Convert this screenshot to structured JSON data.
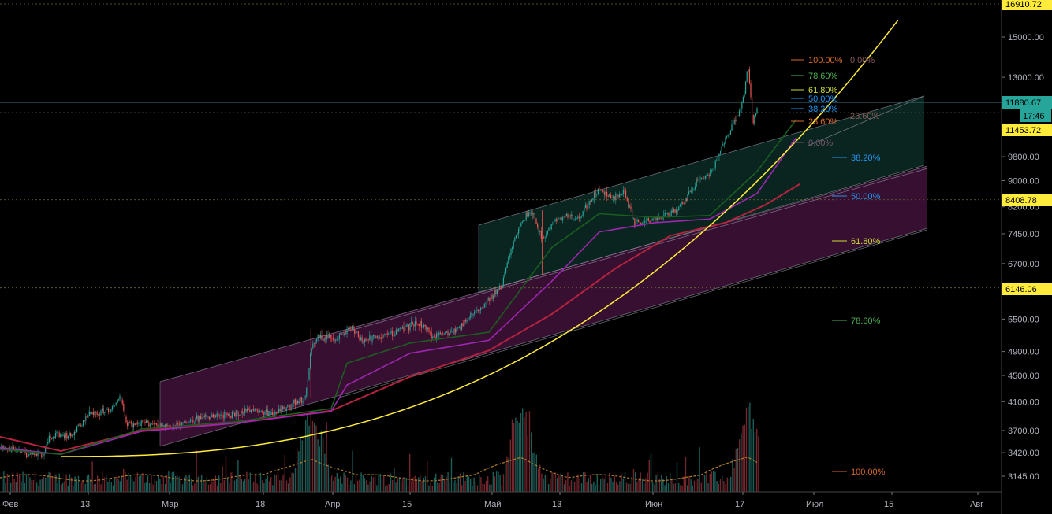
{
  "chart_data": {
    "type": "candlestick",
    "y_scale": "log",
    "ylim": [
      3000,
      17500
    ],
    "x_labels": [
      "Фев",
      "13",
      "Мар",
      "18",
      "Апр",
      "15",
      "Май",
      "13",
      "Июн",
      "17",
      "Июл",
      "15",
      "Авг"
    ],
    "y_ticks": [
      15000.0,
      13000.0,
      9800.0,
      9000.0,
      8200.0,
      7450.0,
      6700.0,
      5500.0,
      4900.0,
      4500.0,
      4100.0,
      3700.0,
      3420.0,
      3145.0
    ],
    "price_labels": [
      {
        "text": "16910.72",
        "value": 16910.72,
        "style": "yellow"
      },
      {
        "text": "11880.67",
        "value": 11880.67,
        "style": "teal"
      },
      {
        "text": "17:46",
        "value": 11300,
        "style": "teal-sub"
      },
      {
        "text": "11453.72",
        "value": 11453.72,
        "style": "yellow"
      },
      {
        "text": "8408.78",
        "value": 8408.78,
        "style": "yellow"
      },
      {
        "text": "6146.06",
        "value": 6146.06,
        "style": "yellow"
      }
    ],
    "horizontal_levels": [
      16910.72,
      11880.67,
      11453.72,
      8408.78,
      6146.06
    ],
    "price_series": [
      {
        "date": "Feb-01",
        "value": 3470
      },
      {
        "date": "Feb-06",
        "value": 3420
      },
      {
        "date": "Feb-09",
        "value": 3390
      },
      {
        "date": "Feb-10",
        "value": 3640
      },
      {
        "date": "Feb-14",
        "value": 3620
      },
      {
        "date": "Feb-18",
        "value": 3920
      },
      {
        "date": "Feb-22",
        "value": 3990
      },
      {
        "date": "Feb-24",
        "value": 4180
      },
      {
        "date": "Feb-25",
        "value": 3780
      },
      {
        "date": "Mar-02",
        "value": 3800
      },
      {
        "date": "Mar-06",
        "value": 3740
      },
      {
        "date": "Mar-10",
        "value": 3860
      },
      {
        "date": "Mar-14",
        "value": 3880
      },
      {
        "date": "Mar-18",
        "value": 3920
      },
      {
        "date": "Mar-22",
        "value": 3980
      },
      {
        "date": "Mar-26",
        "value": 3940
      },
      {
        "date": "Mar-30",
        "value": 4080
      },
      {
        "date": "Apr-01",
        "value": 4150
      },
      {
        "date": "Apr-02",
        "value": 4900
      },
      {
        "date": "Apr-03",
        "value": 5150
      },
      {
        "date": "Apr-07",
        "value": 5150
      },
      {
        "date": "Apr-10",
        "value": 5350
      },
      {
        "date": "Apr-12",
        "value": 5070
      },
      {
        "date": "Apr-18",
        "value": 5250
      },
      {
        "date": "Apr-23",
        "value": 5450
      },
      {
        "date": "Apr-26",
        "value": 5150
      },
      {
        "date": "May-01",
        "value": 5350
      },
      {
        "date": "May-05",
        "value": 5750
      },
      {
        "date": "May-09",
        "value": 6150
      },
      {
        "date": "May-11",
        "value": 7100
      },
      {
        "date": "May-13",
        "value": 7800
      },
      {
        "date": "May-15",
        "value": 8100
      },
      {
        "date": "May-17",
        "value": 7300
      },
      {
        "date": "May-20",
        "value": 7900
      },
      {
        "date": "May-24",
        "value": 7900
      },
      {
        "date": "May-28",
        "value": 8700
      },
      {
        "date": "May-31",
        "value": 8450
      },
      {
        "date": "Jun-02",
        "value": 8650
      },
      {
        "date": "Jun-04",
        "value": 7700
      },
      {
        "date": "Jun-07",
        "value": 7800
      },
      {
        "date": "Jun-10",
        "value": 7950
      },
      {
        "date": "Jun-13",
        "value": 8200
      },
      {
        "date": "Jun-16",
        "value": 8950
      },
      {
        "date": "Jun-19",
        "value": 9250
      },
      {
        "date": "Jun-21",
        "value": 10200
      },
      {
        "date": "Jun-23",
        "value": 10900
      },
      {
        "date": "Jun-25",
        "value": 11900
      },
      {
        "date": "Jun-26",
        "value": 13500
      },
      {
        "date": "Jun-27",
        "value": 11000
      },
      {
        "date": "Jun-28",
        "value": 11880
      }
    ],
    "moving_averages": [
      {
        "name": "",
        "color": "#b2233f",
        "points": [
          [
            0,
            3620
          ],
          [
            77,
            3440
          ],
          [
            180,
            3700
          ],
          [
            300,
            3800
          ],
          [
            420,
            3970
          ],
          [
            520,
            4480
          ],
          [
            620,
            4920
          ],
          [
            700,
            5600
          ],
          [
            780,
            6580
          ],
          [
            850,
            7400
          ],
          [
            920,
            7750
          ],
          [
            970,
            8250
          ],
          [
            1015,
            8900
          ]
        ]
      },
      {
        "name": "",
        "color": "#9c27b0",
        "points": [
          [
            0,
            3480
          ],
          [
            77,
            3400
          ],
          [
            180,
            3690
          ],
          [
            300,
            3800
          ],
          [
            420,
            3960
          ],
          [
            440,
            4350
          ],
          [
            520,
            4870
          ],
          [
            620,
            5100
          ],
          [
            700,
            6300
          ],
          [
            760,
            7500
          ],
          [
            830,
            7750
          ],
          [
            900,
            7850
          ],
          [
            960,
            8600
          ],
          [
            1010,
            10500
          ]
        ]
      },
      {
        "name": "",
        "color": "#1b5e20",
        "points": [
          [
            0,
            3460
          ],
          [
            77,
            3400
          ],
          [
            180,
            3720
          ],
          [
            300,
            3820
          ],
          [
            420,
            4000
          ],
          [
            440,
            4700
          ],
          [
            520,
            5050
          ],
          [
            620,
            5250
          ],
          [
            700,
            7100
          ],
          [
            760,
            8000
          ],
          [
            830,
            7900
          ],
          [
            900,
            7950
          ],
          [
            960,
            9300
          ],
          [
            1010,
            11200
          ]
        ]
      }
    ],
    "parabolic_curve": {
      "color": "#ffeb3b"
    },
    "fib_retracement_1": {
      "levels": [
        {
          "label": "100.00%",
          "color": "#d86a2a",
          "value": 13900
        },
        {
          "label": "78.60%",
          "color": "#4caf50",
          "value": 12650
        },
        {
          "label": "61.80%",
          "color": "#cddc39",
          "value": 12100
        },
        {
          "label": "50.00%",
          "color": "#2196f3",
          "value": 11900
        },
        {
          "label": "38.20%",
          "color": "#2196f3",
          "value": 11650
        },
        {
          "label": "23.60%",
          "color": "#d86a2a",
          "value": 11200
        },
        {
          "label": "0.00%",
          "color": "#7a5a6e",
          "value": 10450
        }
      ],
      "left_labels": [
        {
          "label": "0.00%",
          "color": "#8a5a5a",
          "value": 13900
        },
        {
          "label": "23.60%",
          "color": "#8a5a5a",
          "value": 11400
        }
      ]
    },
    "fib_retracement_2": {
      "levels": [
        {
          "label": "38.20%",
          "color": "#2196f3",
          "value": 9800
        },
        {
          "label": "50.00%",
          "color": "#2196f3",
          "value": 8750
        },
        {
          "label": "61.80%",
          "color": "#cddc39",
          "value": 7250
        },
        {
          "label": "78.60%",
          "color": "#4caf50",
          "value": 5500
        },
        {
          "label": "100.00%",
          "color": "#d86a2a",
          "value": 3250
        }
      ]
    },
    "channels": [
      {
        "name": "",
        "color": "#4a1442"
      },
      {
        "name": "",
        "color": "#0c2a26"
      }
    ],
    "volume": {
      "peak_dates": [
        "Apr-02",
        "May-13",
        "Jun-26"
      ]
    }
  }
}
